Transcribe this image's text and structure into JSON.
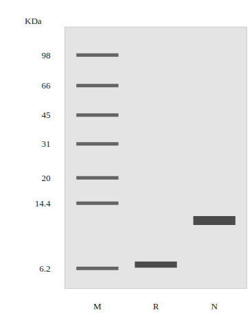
{
  "chart_data": {
    "type": "gel",
    "y_label": "KDa",
    "log": "y",
    "categories": [
      "M",
      "R",
      "N"
    ],
    "ylim": [
      4.8,
      140
    ],
    "yticks": [
      98,
      66,
      45,
      31,
      20,
      14.4,
      6.2
    ],
    "color": "#3a3a3a",
    "bands": [
      {
        "lane": "M",
        "kda": [
          98,
          66,
          45,
          31,
          20,
          14.4,
          6.2
        ]
      },
      {
        "lane": "R",
        "kda": [
          6.5
        ]
      },
      {
        "lane": "N",
        "kda": [
          11.5
        ]
      }
    ]
  }
}
